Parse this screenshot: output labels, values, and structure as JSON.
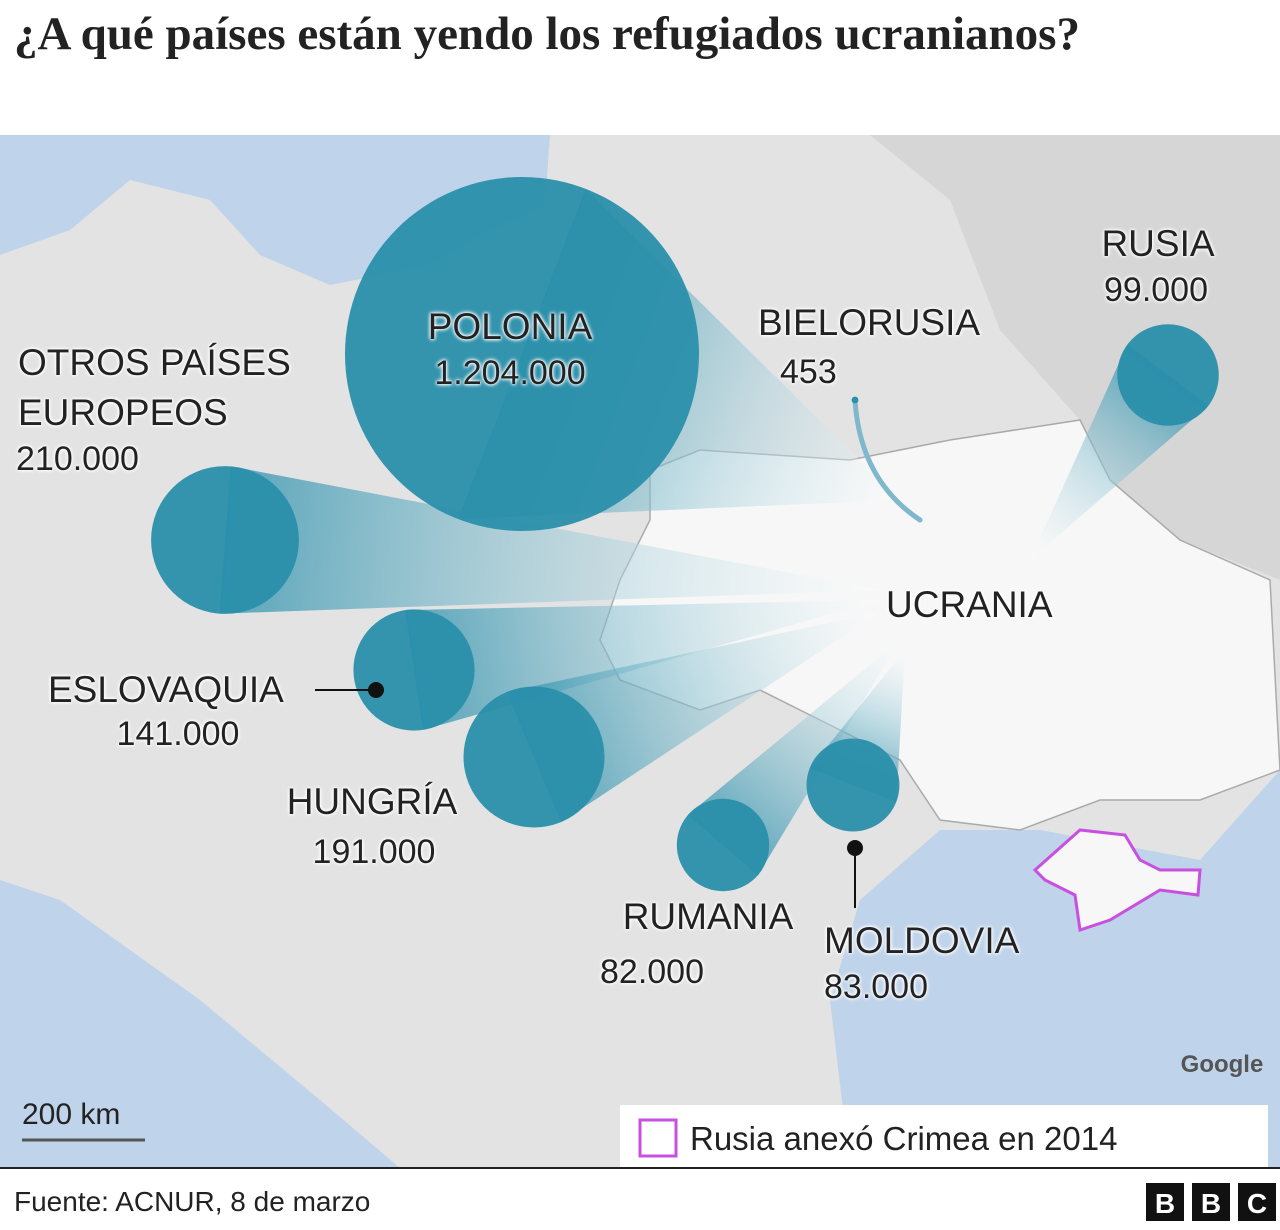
{
  "title": "¿A qué países están yendo los refugiados ucranianos?",
  "map": {
    "destinations": [
      {
        "name": "POLONIA",
        "value": 1204000,
        "label": "1.204.000"
      },
      {
        "name": "OTROS PAÍSES EUROPEOS",
        "value": 210000,
        "label": "210.000"
      },
      {
        "name": "ESLOVAQUIA",
        "value": 141000,
        "label": "141.000"
      },
      {
        "name": "HUNGRÍA",
        "value": 191000,
        "label": "191.000"
      },
      {
        "name": "RUMANIA",
        "value": 82000,
        "label": "82.000"
      },
      {
        "name": "MOLDOVIA",
        "value": 83000,
        "label": "83.000"
      },
      {
        "name": "RUSIA",
        "value": 99000,
        "label": "99.000"
      },
      {
        "name": "BIELORUSIA",
        "value": 453,
        "label": "453"
      }
    ],
    "origin_label": "UCRANIA",
    "scale_label": "200 km",
    "attribution": "Google",
    "legend": "Rusia anexó Crimea en 2014"
  },
  "footer": {
    "source": "Fuente: ACNUR, 8 de marzo",
    "logo": [
      "B",
      "B",
      "C"
    ]
  }
}
